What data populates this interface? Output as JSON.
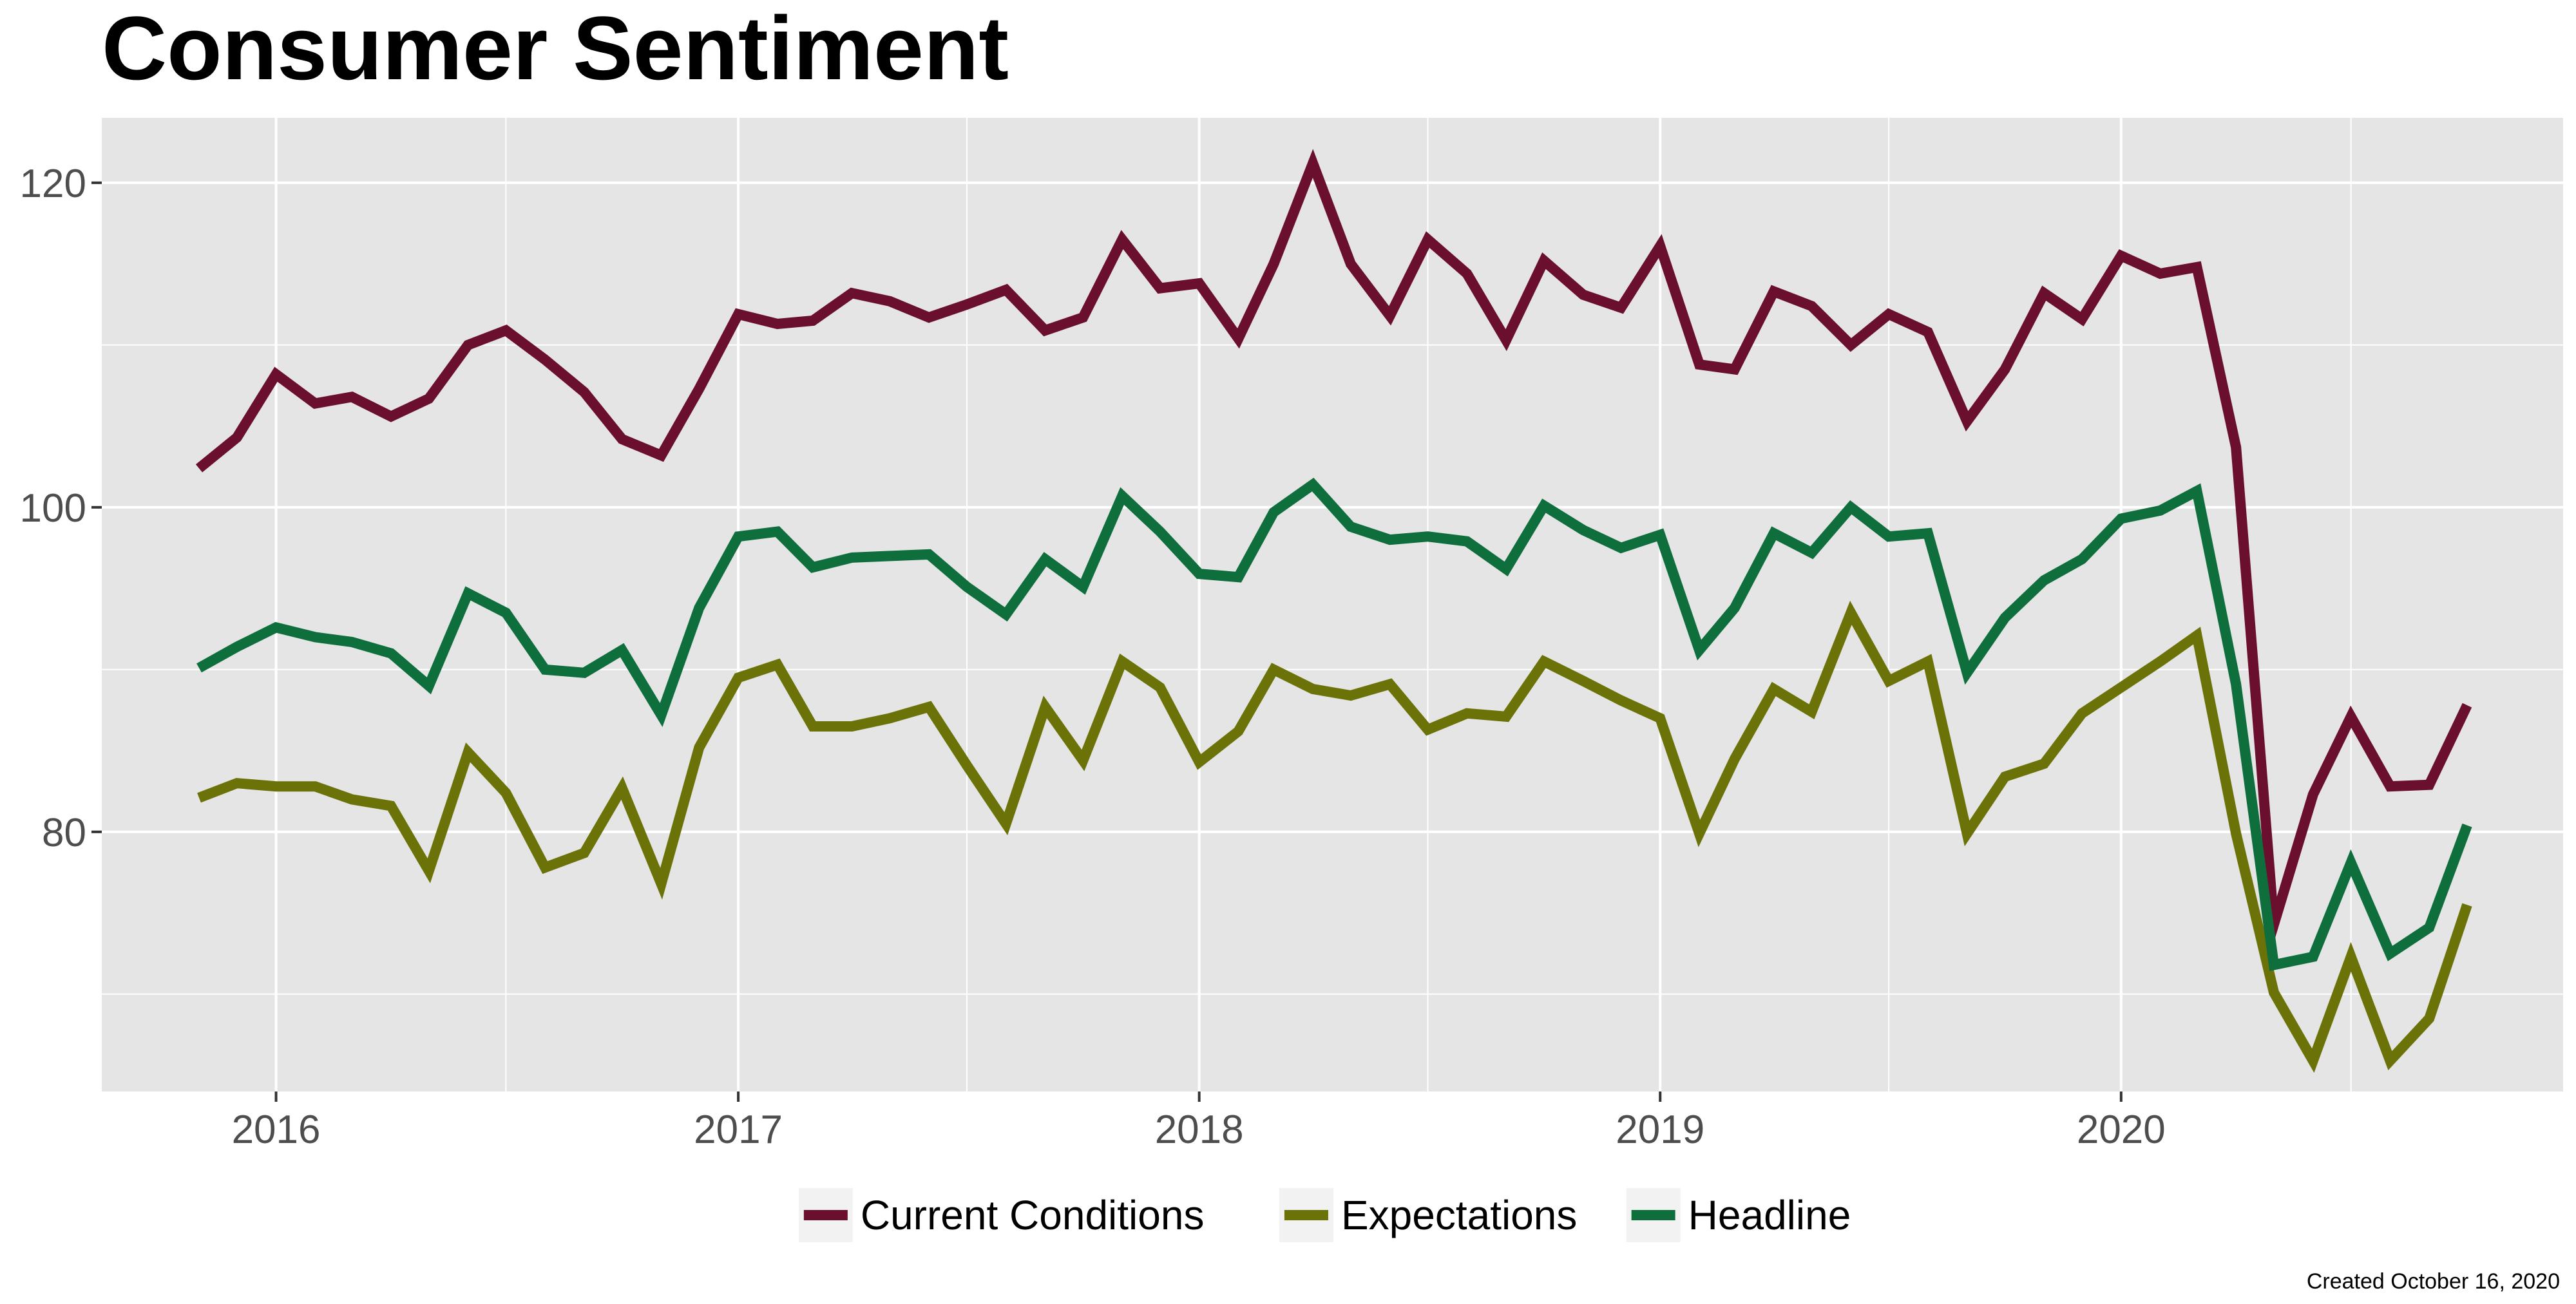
{
  "chart_data": {
    "type": "line",
    "title": "Consumer Sentiment",
    "caption": "Created October 16, 2020",
    "xlabel": "",
    "ylabel": "",
    "x_ticks": [
      "2016",
      "2017",
      "2018",
      "2019",
      "2020"
    ],
    "y_ticks": [
      80,
      100,
      120
    ],
    "ylim": [
      64,
      124
    ],
    "xlim": [
      "2015-08-16",
      "2020-12-16"
    ],
    "grid": true,
    "legend_position": "bottom",
    "x": [
      "2015-11",
      "2015-12",
      "2016-01",
      "2016-02",
      "2016-03",
      "2016-04",
      "2016-05",
      "2016-06",
      "2016-07",
      "2016-08",
      "2016-09",
      "2016-10",
      "2016-11",
      "2016-12",
      "2017-01",
      "2017-02",
      "2017-03",
      "2017-04",
      "2017-05",
      "2017-06",
      "2017-07",
      "2017-08",
      "2017-09",
      "2017-10",
      "2017-11",
      "2017-12",
      "2018-01",
      "2018-02",
      "2018-03",
      "2018-04",
      "2018-05",
      "2018-06",
      "2018-07",
      "2018-08",
      "2018-09",
      "2018-10",
      "2018-11",
      "2018-12",
      "2019-01",
      "2019-02",
      "2019-03",
      "2019-04",
      "2019-05",
      "2019-06",
      "2019-07",
      "2019-08",
      "2019-09",
      "2019-10",
      "2019-11",
      "2019-12",
      "2020-01",
      "2020-02",
      "2020-03",
      "2020-04",
      "2020-05",
      "2020-06",
      "2020-07",
      "2020-08",
      "2020-09",
      "2020-10"
    ],
    "series": [
      {
        "name": "Current Conditions",
        "color": "#6b0f2e",
        "values": [
          102.4,
          104.3,
          108.2,
          106.4,
          106.8,
          105.6,
          106.7,
          110.0,
          110.9,
          109.1,
          107.1,
          104.2,
          103.2,
          107.3,
          111.9,
          111.3,
          111.5,
          113.2,
          112.7,
          111.7,
          112.5,
          113.4,
          110.9,
          111.7,
          116.5,
          113.5,
          113.8,
          110.4,
          115.0,
          121.2,
          115.0,
          111.8,
          116.5,
          114.4,
          110.3,
          115.2,
          113.1,
          112.3,
          116.1,
          108.8,
          108.5,
          113.3,
          112.4,
          110.0,
          111.9,
          110.8,
          105.3,
          108.5,
          113.2,
          111.6,
          115.5,
          114.4,
          114.8,
          103.7,
          74.3,
          82.3,
          87.1,
          82.8,
          82.9,
          87.8
        ]
      },
      {
        "name": "Expectations",
        "color": "#6b7308",
        "values": [
          82.1,
          83.0,
          82.8,
          82.8,
          82.0,
          81.6,
          77.6,
          84.9,
          82.4,
          77.8,
          78.7,
          82.7,
          76.8,
          85.2,
          89.5,
          90.3,
          86.5,
          86.5,
          87.0,
          87.7,
          84.1,
          80.5,
          87.7,
          84.4,
          90.5,
          88.9,
          84.3,
          86.2,
          90.0,
          88.8,
          88.4,
          89.1,
          86.3,
          87.3,
          87.1,
          90.5,
          89.3,
          88.1,
          87.0,
          79.9,
          84.5,
          88.8,
          87.4,
          93.5,
          89.3,
          90.5,
          79.9,
          83.4,
          84.2,
          87.3,
          88.9,
          90.5,
          92.1,
          79.9,
          70.1,
          65.9,
          72.3,
          65.9,
          68.5,
          75.5
        ]
      },
      {
        "name": "Headline",
        "color": "#0e6e3c",
        "values": [
          90.1,
          91.4,
          92.6,
          92.0,
          91.7,
          91.0,
          89.0,
          94.7,
          93.5,
          90.0,
          89.8,
          91.2,
          87.2,
          93.8,
          98.2,
          98.5,
          96.3,
          96.9,
          97.0,
          97.1,
          95.1,
          93.4,
          96.8,
          95.1,
          100.7,
          98.5,
          95.9,
          95.7,
          99.7,
          101.4,
          98.8,
          98.0,
          98.2,
          97.9,
          96.2,
          100.1,
          98.6,
          97.5,
          98.3,
          91.2,
          93.8,
          98.4,
          97.2,
          100.0,
          98.2,
          98.4,
          89.8,
          93.2,
          95.5,
          96.8,
          99.3,
          99.8,
          101.0,
          89.1,
          71.8,
          72.3,
          78.1,
          72.5,
          74.1,
          80.4
        ]
      }
    ]
  }
}
